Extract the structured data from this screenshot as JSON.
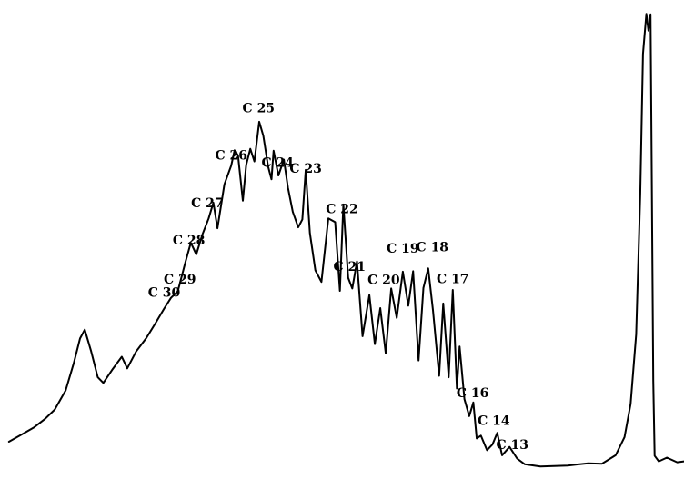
{
  "chart_data": {
    "type": "line",
    "title": "",
    "xlabel": "",
    "ylabel": "",
    "grid": false,
    "line_color": "#000000",
    "peaks": [
      {
        "label": "C30",
        "x": 0.24,
        "y": 0.376
      },
      {
        "label": "C29",
        "x": 0.263,
        "y": 0.405
      },
      {
        "label": "C28",
        "x": 0.276,
        "y": 0.488
      },
      {
        "label": "C27",
        "x": 0.303,
        "y": 0.568
      },
      {
        "label": "C26",
        "x": 0.338,
        "y": 0.67
      },
      {
        "label": "C25",
        "x": 0.378,
        "y": 0.771
      },
      {
        "label": "C24",
        "x": 0.406,
        "y": 0.655
      },
      {
        "label": "C23",
        "x": 0.447,
        "y": 0.642
      },
      {
        "label": "C22",
        "x": 0.5,
        "y": 0.555
      },
      {
        "label": "C21",
        "x": 0.511,
        "y": 0.432
      },
      {
        "label": "C20",
        "x": 0.561,
        "y": 0.404
      },
      {
        "label": "C19",
        "x": 0.589,
        "y": 0.471
      },
      {
        "label": "C18",
        "x": 0.632,
        "y": 0.474
      },
      {
        "label": "C17",
        "x": 0.662,
        "y": 0.406
      },
      {
        "label": "C16",
        "x": 0.691,
        "y": 0.161
      },
      {
        "label": "C14",
        "x": 0.722,
        "y": 0.102
      },
      {
        "label": "C13",
        "x": 0.749,
        "y": 0.051
      }
    ],
    "trace": [
      [
        0.013,
        0.07
      ],
      [
        0.03,
        0.084
      ],
      [
        0.05,
        0.101
      ],
      [
        0.066,
        0.119
      ],
      [
        0.08,
        0.139
      ],
      [
        0.096,
        0.18
      ],
      [
        0.108,
        0.239
      ],
      [
        0.117,
        0.291
      ],
      [
        0.124,
        0.31
      ],
      [
        0.133,
        0.265
      ],
      [
        0.143,
        0.208
      ],
      [
        0.151,
        0.196
      ],
      [
        0.164,
        0.224
      ],
      [
        0.178,
        0.252
      ],
      [
        0.186,
        0.227
      ],
      [
        0.199,
        0.263
      ],
      [
        0.214,
        0.292
      ],
      [
        0.227,
        0.323
      ],
      [
        0.24,
        0.355
      ],
      [
        0.25,
        0.378
      ],
      [
        0.26,
        0.392
      ],
      [
        0.271,
        0.454
      ],
      [
        0.279,
        0.496
      ],
      [
        0.287,
        0.471
      ],
      [
        0.296,
        0.514
      ],
      [
        0.305,
        0.548
      ],
      [
        0.312,
        0.582
      ],
      [
        0.318,
        0.527
      ],
      [
        0.328,
        0.621
      ],
      [
        0.338,
        0.661
      ],
      [
        0.343,
        0.694
      ],
      [
        0.348,
        0.683
      ],
      [
        0.355,
        0.586
      ],
      [
        0.36,
        0.663
      ],
      [
        0.366,
        0.697
      ],
      [
        0.372,
        0.67
      ],
      [
        0.379,
        0.755
      ],
      [
        0.385,
        0.725
      ],
      [
        0.392,
        0.659
      ],
      [
        0.397,
        0.632
      ],
      [
        0.4,
        0.693
      ],
      [
        0.407,
        0.64
      ],
      [
        0.415,
        0.674
      ],
      [
        0.421,
        0.614
      ],
      [
        0.428,
        0.562
      ],
      [
        0.436,
        0.529
      ],
      [
        0.442,
        0.546
      ],
      [
        0.447,
        0.652
      ],
      [
        0.453,
        0.517
      ],
      [
        0.461,
        0.437
      ],
      [
        0.47,
        0.412
      ],
      [
        0.48,
        0.548
      ],
      [
        0.49,
        0.54
      ],
      [
        0.497,
        0.393
      ],
      [
        0.502,
        0.578
      ],
      [
        0.509,
        0.421
      ],
      [
        0.515,
        0.398
      ],
      [
        0.522,
        0.456
      ],
      [
        0.53,
        0.296
      ],
      [
        0.54,
        0.384
      ],
      [
        0.548,
        0.279
      ],
      [
        0.556,
        0.356
      ],
      [
        0.564,
        0.259
      ],
      [
        0.572,
        0.398
      ],
      [
        0.58,
        0.335
      ],
      [
        0.589,
        0.434
      ],
      [
        0.597,
        0.361
      ],
      [
        0.604,
        0.435
      ],
      [
        0.612,
        0.244
      ],
      [
        0.619,
        0.399
      ],
      [
        0.626,
        0.441
      ],
      [
        0.633,
        0.352
      ],
      [
        0.642,
        0.211
      ],
      [
        0.648,
        0.366
      ],
      [
        0.656,
        0.208
      ],
      [
        0.662,
        0.395
      ],
      [
        0.668,
        0.184
      ],
      [
        0.672,
        0.274
      ],
      [
        0.679,
        0.161
      ],
      [
        0.686,
        0.125
      ],
      [
        0.692,
        0.154
      ],
      [
        0.697,
        0.077
      ],
      [
        0.703,
        0.083
      ],
      [
        0.712,
        0.052
      ],
      [
        0.72,
        0.064
      ],
      [
        0.727,
        0.089
      ],
      [
        0.734,
        0.041
      ],
      [
        0.745,
        0.059
      ],
      [
        0.756,
        0.034
      ],
      [
        0.767,
        0.022
      ],
      [
        0.79,
        0.017
      ],
      [
        0.83,
        0.019
      ],
      [
        0.86,
        0.024
      ],
      [
        0.88,
        0.023
      ],
      [
        0.9,
        0.041
      ],
      [
        0.913,
        0.08
      ],
      [
        0.922,
        0.151
      ],
      [
        0.93,
        0.3
      ],
      [
        0.936,
        0.6
      ],
      [
        0.94,
        0.9
      ],
      [
        0.945,
        0.986
      ],
      [
        0.948,
        0.95
      ],
      [
        0.951,
        0.985
      ],
      [
        0.953,
        0.6
      ],
      [
        0.955,
        0.2
      ],
      [
        0.957,
        0.04
      ],
      [
        0.963,
        0.028
      ],
      [
        0.975,
        0.036
      ],
      [
        0.99,
        0.026
      ],
      [
        1.0,
        0.028
      ]
    ]
  }
}
